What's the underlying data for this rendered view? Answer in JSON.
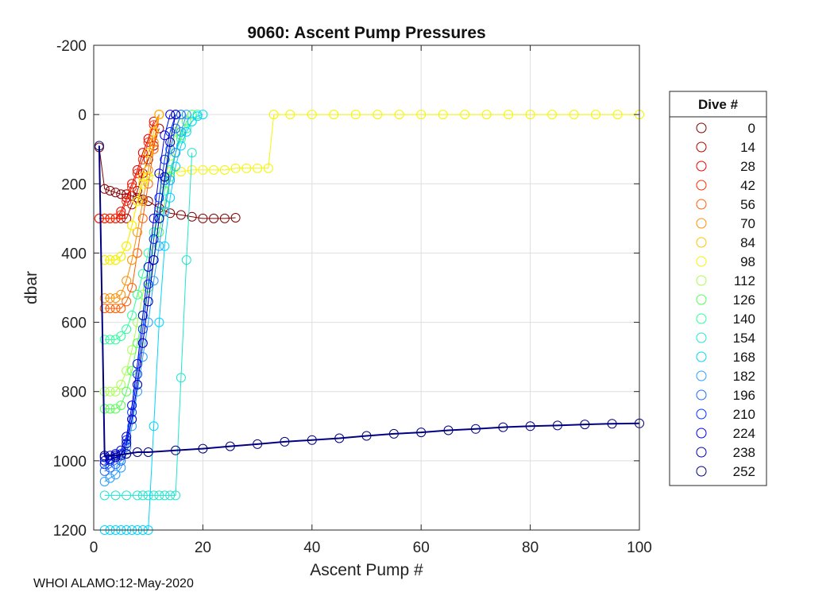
{
  "chart_data": {
    "type": "line",
    "title": "9060: Ascent Pump Pressures",
    "xlabel": "Ascent Pump #",
    "ylabel": "dbar",
    "xlim": [
      0,
      100
    ],
    "ylim": [
      -200,
      1200
    ],
    "y_reversed": true,
    "xticks": [
      0,
      20,
      40,
      60,
      80,
      100
    ],
    "yticks": [
      -200,
      0,
      200,
      400,
      600,
      800,
      1000,
      1200
    ],
    "xtick_labels": [
      "0",
      "20",
      "40",
      "60",
      "80",
      "100"
    ],
    "ytick_labels": [
      "-200",
      "0",
      "200",
      "400",
      "600",
      "800",
      "1000",
      "1200"
    ],
    "grid": true,
    "marker": "circle",
    "legend": {
      "title": "Dive #",
      "location": "outside-right",
      "entries": [
        {
          "label": "0",
          "color": "#800000"
        },
        {
          "label": "14",
          "color": "#b30000"
        },
        {
          "label": "28",
          "color": "#e60000"
        },
        {
          "label": "42",
          "color": "#ff2a00"
        },
        {
          "label": "56",
          "color": "#ff5c00"
        },
        {
          "label": "70",
          "color": "#ff8f00"
        },
        {
          "label": "84",
          "color": "#ffc200"
        },
        {
          "label": "98",
          "color": "#f5f500"
        },
        {
          "label": "112",
          "color": "#a8ff4f"
        },
        {
          "label": "126",
          "color": "#52ff52"
        },
        {
          "label": "140",
          "color": "#2aff9c"
        },
        {
          "label": "154",
          "color": "#1fe6d0"
        },
        {
          "label": "168",
          "color": "#00d4ff"
        },
        {
          "label": "182",
          "color": "#2a9dff"
        },
        {
          "label": "196",
          "color": "#1a6bff"
        },
        {
          "label": "210",
          "color": "#0033ff"
        },
        {
          "label": "224",
          "color": "#0000e6"
        },
        {
          "label": "238",
          "color": "#0000b3"
        },
        {
          "label": "252",
          "color": "#000080"
        }
      ]
    },
    "series": [
      {
        "name": "0",
        "color": "#800000",
        "x": [
          1,
          2,
          3,
          4,
          5,
          6,
          7,
          8,
          9,
          10,
          12,
          14,
          16,
          18,
          20,
          22,
          24,
          26
        ],
        "y": [
          95,
          215,
          220,
          225,
          230,
          230,
          235,
          240,
          245,
          250,
          270,
          285,
          290,
          295,
          300,
          300,
          300,
          298
        ]
      },
      {
        "name": "14",
        "color": "#b30000",
        "x": [
          1,
          2,
          3,
          4,
          5,
          6,
          7,
          8,
          9,
          10,
          11,
          12
        ],
        "y": [
          300,
          300,
          300,
          300,
          300,
          300,
          260,
          220,
          170,
          130,
          90,
          40
        ]
      },
      {
        "name": "28",
        "color": "#e60000",
        "x": [
          1,
          2,
          3,
          4,
          5,
          6,
          7,
          8,
          9,
          10,
          11
        ],
        "y": [
          300,
          300,
          300,
          300,
          280,
          240,
          200,
          160,
          110,
          70,
          20
        ]
      },
      {
        "name": "42",
        "color": "#ff2a00",
        "x": [
          1,
          2,
          3,
          4,
          5,
          6,
          7,
          8,
          9,
          10,
          11,
          12
        ],
        "y": [
          300,
          300,
          300,
          300,
          290,
          250,
          210,
          170,
          130,
          80,
          30,
          0
        ]
      },
      {
        "name": "56",
        "color": "#ff5c00",
        "x": [
          2,
          3,
          4,
          5,
          6,
          7,
          8,
          9,
          10,
          11,
          12
        ],
        "y": [
          560,
          560,
          560,
          560,
          540,
          500,
          400,
          300,
          200,
          100,
          0
        ]
      },
      {
        "name": "70",
        "color": "#ff8f00",
        "x": [
          2,
          3,
          4,
          5,
          6,
          7,
          8,
          9,
          10,
          11,
          12
        ],
        "y": [
          530,
          530,
          530,
          520,
          480,
          420,
          340,
          250,
          160,
          80,
          0
        ]
      },
      {
        "name": "84",
        "color": "#ffc200",
        "x": [
          2,
          3,
          4,
          5,
          6,
          7,
          8,
          9,
          10,
          11,
          12
        ],
        "y": [
          420,
          420,
          420,
          410,
          380,
          320,
          250,
          180,
          110,
          50,
          0
        ]
      },
      {
        "name": "98",
        "color": "#f5f500",
        "x": [
          2,
          3,
          4,
          5,
          6,
          7,
          8,
          9,
          10,
          12,
          14,
          16,
          18,
          20,
          22,
          24,
          26,
          28,
          30,
          32,
          33,
          36,
          40,
          44,
          48,
          52,
          56,
          60,
          64,
          68,
          72,
          76,
          80,
          84,
          88,
          92,
          96,
          100
        ],
        "y": [
          420,
          420,
          420,
          410,
          380,
          320,
          250,
          200,
          180,
          170,
          165,
          165,
          160,
          160,
          160,
          160,
          155,
          155,
          155,
          155,
          0,
          0,
          0,
          0,
          0,
          0,
          0,
          0,
          0,
          0,
          0,
          0,
          0,
          0,
          0,
          0,
          0,
          0
        ]
      },
      {
        "name": "112",
        "color": "#a8ff4f",
        "x": [
          2,
          3,
          4,
          5,
          6,
          7,
          8,
          9,
          10,
          11,
          12,
          13,
          14,
          15,
          16
        ],
        "y": [
          800,
          800,
          800,
          780,
          740,
          680,
          600,
          520,
          440,
          360,
          280,
          200,
          120,
          50,
          0
        ]
      },
      {
        "name": "126",
        "color": "#52ff52",
        "x": [
          2,
          3,
          4,
          5,
          6,
          7,
          8,
          9,
          10,
          11,
          12,
          13,
          14,
          15,
          16,
          17,
          18
        ],
        "y": [
          850,
          850,
          850,
          840,
          800,
          740,
          660,
          580,
          500,
          420,
          340,
          260,
          180,
          110,
          60,
          20,
          0
        ]
      },
      {
        "name": "140",
        "color": "#2aff9c",
        "x": [
          2,
          3,
          4,
          5,
          6,
          7,
          8,
          9,
          10,
          11,
          12,
          13,
          14,
          15,
          16,
          17,
          18,
          19
        ],
        "y": [
          650,
          650,
          650,
          640,
          620,
          580,
          520,
          460,
          400,
          340,
          280,
          220,
          160,
          110,
          70,
          40,
          20,
          0
        ]
      },
      {
        "name": "154",
        "color": "#1fe6d0",
        "x": [
          2,
          4,
          6,
          8,
          9,
          10,
          11,
          12,
          13,
          14,
          15,
          16,
          17,
          18
        ],
        "y": [
          1100,
          1100,
          1100,
          1100,
          1100,
          1100,
          1100,
          1100,
          1100,
          1100,
          1100,
          760,
          420,
          110
        ]
      },
      {
        "name": "168",
        "color": "#00d4ff",
        "x": [
          2,
          3,
          4,
          5,
          6,
          7,
          8,
          9,
          10,
          11,
          12,
          13,
          14,
          15,
          16,
          17,
          18,
          19,
          20
        ],
        "y": [
          1200,
          1200,
          1200,
          1200,
          1200,
          1200,
          1200,
          1200,
          1200,
          900,
          600,
          380,
          240,
          150,
          90,
          50,
          20,
          5,
          0
        ]
      },
      {
        "name": "182",
        "color": "#2a9dff",
        "x": [
          2,
          3,
          4,
          5,
          6,
          7,
          8,
          9,
          10,
          11,
          12,
          13,
          14,
          15,
          16,
          17
        ],
        "y": [
          1060,
          1050,
          1040,
          1020,
          980,
          900,
          800,
          700,
          600,
          480,
          380,
          280,
          190,
          110,
          50,
          0
        ]
      },
      {
        "name": "196",
        "color": "#1a6bff",
        "x": [
          2,
          3,
          4,
          5,
          6,
          7,
          8,
          9,
          10,
          11,
          12,
          13,
          14,
          15,
          16
        ],
        "y": [
          1030,
          1020,
          1010,
          1000,
          960,
          880,
          780,
          660,
          540,
          420,
          300,
          190,
          100,
          40,
          0
        ]
      },
      {
        "name": "210",
        "color": "#0033ff",
        "x": [
          2,
          3,
          4,
          5,
          6,
          7,
          8,
          9,
          10,
          11,
          12,
          13,
          14,
          15
        ],
        "y": [
          1010,
          1000,
          990,
          980,
          940,
          860,
          750,
          620,
          490,
          360,
          240,
          130,
          50,
          0
        ]
      },
      {
        "name": "224",
        "color": "#0000e6",
        "x": [
          2,
          3,
          4,
          5,
          6,
          7,
          8,
          9,
          10,
          11,
          12,
          13,
          14
        ],
        "y": [
          990,
          985,
          980,
          970,
          930,
          840,
          720,
          580,
          440,
          300,
          170,
          60,
          0
        ]
      },
      {
        "name": "238",
        "color": "#0000b3",
        "x": [
          2,
          3,
          4,
          5,
          6,
          7,
          8,
          9,
          10,
          11,
          12,
          13,
          14,
          15
        ],
        "y": [
          1000,
          995,
          990,
          985,
          950,
          880,
          780,
          660,
          540,
          420,
          300,
          180,
          80,
          0
        ]
      },
      {
        "name": "252",
        "color": "#000080",
        "x": [
          1,
          2,
          4,
          6,
          8,
          10,
          15,
          20,
          25,
          30,
          35,
          40,
          45,
          50,
          55,
          60,
          65,
          70,
          75,
          80,
          85,
          90,
          95,
          100
        ],
        "y": [
          90,
          985,
          985,
          980,
          975,
          975,
          970,
          965,
          958,
          952,
          945,
          940,
          935,
          928,
          922,
          918,
          912,
          908,
          903,
          900,
          898,
          895,
          893,
          892
        ]
      }
    ]
  },
  "footer": {
    "text": "WHOI ALAMO:12-May-2020"
  }
}
